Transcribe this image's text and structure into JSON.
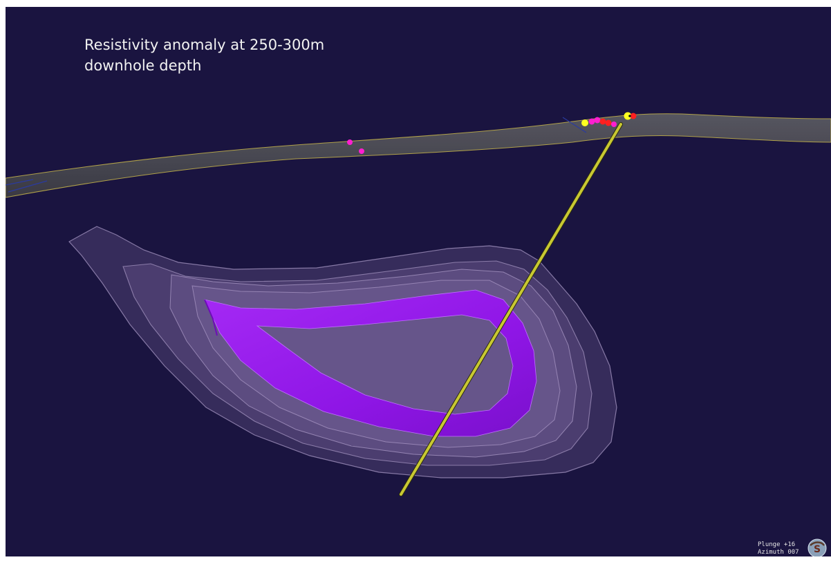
{
  "caption": {
    "line1": "Resistivity anomaly at 250-300m",
    "line2": "downhole depth"
  },
  "orientation": {
    "plunge": "Plunge +16",
    "azimuth": "Azimuth 007"
  },
  "logo": {
    "letter": "S"
  },
  "colors": {
    "background": "#1a1440",
    "surface": "#4a4a52",
    "surface_edge": "#b9a94a",
    "drillhole": "#c8c832",
    "anomaly_core": "#9a1ff0",
    "anomaly_shell": "#b89ad8",
    "sample_magenta": "#ff1fd0",
    "sample_red": "#ff2020",
    "sample_yellow": "#ffff20"
  }
}
